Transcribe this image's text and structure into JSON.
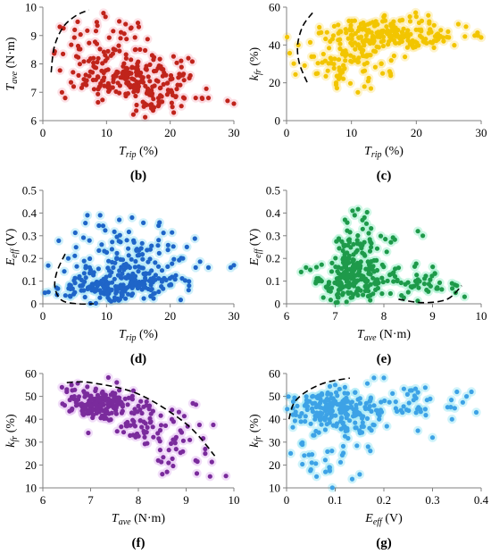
{
  "chart_data": [
    {
      "id": "b",
      "type": "scatter",
      "caption": "(b)",
      "color": "#c0241b",
      "halo": "#f9c8d2",
      "xlabel": {
        "base": "T",
        "sub": "rip",
        "unit": " (%)"
      },
      "ylabel": {
        "base": "T",
        "sub": "ave",
        "unit": " (N·m)"
      },
      "xlim": [
        0,
        30
      ],
      "ylim": [
        6,
        10
      ],
      "xticks": [
        0,
        10,
        20,
        30
      ],
      "yticks": [
        6,
        7,
        8,
        9,
        10
      ],
      "boundary": [
        [
          1.3,
          7.7
        ],
        [
          1.8,
          8.6
        ],
        [
          3.2,
          9.3
        ],
        [
          5.2,
          9.7
        ],
        [
          7.2,
          9.9
        ]
      ],
      "clusters": [
        {
          "cx": 14,
          "sx": 4.5,
          "cy": 7.5,
          "sy": 0.45,
          "n": 170
        },
        {
          "cx": 10,
          "sx": 4,
          "cy": 8.4,
          "sy": 0.6,
          "n": 75
        },
        {
          "cx": 18,
          "sx": 2,
          "cy": 7.0,
          "sy": 0.3,
          "n": 25
        },
        {
          "cx": 17.5,
          "sx": 1.5,
          "cy": 6.6,
          "sy": 0.15,
          "n": 12
        }
      ],
      "points": [
        [
          12,
          9.5
        ],
        [
          13,
          9.4
        ],
        [
          5,
          9.2
        ],
        [
          24,
          6.8
        ],
        [
          25,
          6.8
        ],
        [
          26,
          6.8
        ],
        [
          29,
          6.7
        ],
        [
          30,
          6.6
        ],
        [
          22,
          7.6
        ],
        [
          23,
          7.5
        ],
        [
          3,
          7.0
        ],
        [
          3.5,
          6.8
        ]
      ]
    },
    {
      "id": "c",
      "type": "scatter",
      "caption": "(c)",
      "color": "#f2c500",
      "halo": "#fdeaa0",
      "xlabel": {
        "base": "T",
        "sub": "rip",
        "unit": " (%)"
      },
      "ylabel": {
        "base": "k",
        "sub": "fr",
        "unit": " (%)"
      },
      "xlim": [
        0,
        30
      ],
      "ylim": [
        0,
        60
      ],
      "xticks": [
        0,
        10,
        20,
        30
      ],
      "yticks": [
        0,
        20,
        40,
        60
      ],
      "boundary": [
        [
          4,
          57
        ],
        [
          2.5,
          50
        ],
        [
          1.7,
          40
        ],
        [
          2,
          30
        ],
        [
          3.2,
          20
        ]
      ],
      "clusters": [
        {
          "cx": 15,
          "sx": 4.5,
          "cy": 46,
          "sy": 4.5,
          "n": 170
        },
        {
          "cx": 10,
          "sx": 4,
          "cy": 36,
          "sy": 7,
          "n": 80
        },
        {
          "cx": 8,
          "sx": 3,
          "cy": 25,
          "sy": 5,
          "n": 25
        },
        {
          "cx": 22,
          "sx": 3,
          "cy": 44,
          "sy": 2.5,
          "n": 25
        }
      ],
      "points": [
        [
          12,
          18
        ],
        [
          13,
          17
        ],
        [
          11,
          15
        ],
        [
          29,
          45
        ],
        [
          30,
          44
        ],
        [
          29.5,
          45
        ],
        [
          25,
          44
        ],
        [
          19,
          55
        ],
        [
          20,
          55
        ]
      ]
    },
    {
      "id": "d",
      "type": "scatter",
      "caption": "(d)",
      "color": "#1f65c8",
      "halo": "#a8e4f5",
      "xlabel": {
        "base": "T",
        "sub": "rip",
        "unit": " (%)"
      },
      "ylabel": {
        "base": "E",
        "sub": "eff",
        "unit": " (V)"
      },
      "xlim": [
        0,
        30
      ],
      "ylim": [
        0,
        0.5
      ],
      "xticks": [
        0,
        10,
        20,
        30
      ],
      "yticks": [
        0,
        0.1,
        0.2,
        0.3,
        0.4,
        0.5
      ],
      "boundary": [
        [
          3.5,
          0.22
        ],
        [
          2.2,
          0.14
        ],
        [
          1.9,
          0.07
        ],
        [
          3,
          0.015
        ],
        [
          5.5,
          0.0
        ],
        [
          8,
          0.0
        ]
      ],
      "clusters": [
        {
          "cx": 13,
          "sx": 4.5,
          "cy": 0.09,
          "sy": 0.04,
          "n": 180
        },
        {
          "cx": 14,
          "sx": 5,
          "cy": 0.22,
          "sy": 0.07,
          "n": 90
        },
        {
          "cx": 8,
          "sx": 3.5,
          "cy": 0.06,
          "sy": 0.03,
          "n": 50
        }
      ],
      "points": [
        [
          7,
          0.39
        ],
        [
          9,
          0.39
        ],
        [
          12,
          0.37
        ],
        [
          14,
          0.38
        ],
        [
          29.5,
          0.16
        ],
        [
          30,
          0.17
        ],
        [
          22,
          0.2
        ],
        [
          24,
          0.16
        ],
        [
          26,
          0.16
        ],
        [
          4,
          0.2
        ]
      ]
    },
    {
      "id": "e",
      "type": "scatter",
      "caption": "(e)",
      "color": "#1e9a4a",
      "halo": "#a8f0d0",
      "xlabel": {
        "base": "T",
        "sub": "ave",
        "unit": " (N·m)"
      },
      "ylabel": {
        "base": "E",
        "sub": "eff",
        "unit": " (V)"
      },
      "xlim": [
        6,
        10
      ],
      "ylim": [
        0,
        0.5
      ],
      "xticks": [
        6,
        7,
        8,
        9,
        10
      ],
      "yticks": [
        0,
        0.1,
        0.2,
        0.3,
        0.4,
        0.5
      ],
      "boundary": [
        [
          8.3,
          0.02
        ],
        [
          8.8,
          0.005
        ],
        [
          9.3,
          0.02
        ],
        [
          9.6,
          0.08
        ]
      ],
      "clusters": [
        {
          "cx": 7.3,
          "sx": 0.35,
          "cy": 0.1,
          "sy": 0.05,
          "n": 170
        },
        {
          "cx": 7.5,
          "sx": 0.3,
          "cy": 0.24,
          "sy": 0.07,
          "n": 80
        },
        {
          "cx": 8.4,
          "sx": 0.5,
          "cy": 0.1,
          "sy": 0.04,
          "n": 40
        },
        {
          "cx": 9.1,
          "sx": 0.3,
          "cy": 0.07,
          "sy": 0.02,
          "n": 15
        }
      ],
      "points": [
        [
          7.2,
          0.37
        ],
        [
          7.4,
          0.39
        ],
        [
          7.6,
          0.38
        ],
        [
          8.7,
          0.32
        ],
        [
          8.8,
          0.3
        ],
        [
          9.4,
          0.09
        ],
        [
          9.5,
          0.08
        ],
        [
          6.3,
          0.14
        ],
        [
          6.4,
          0.16
        ]
      ]
    },
    {
      "id": "f",
      "type": "scatter",
      "caption": "(f)",
      "color": "#7a2b9c",
      "halo": "#e6c2f2",
      "xlabel": {
        "base": "T",
        "sub": "ave",
        "unit": " (N·m)"
      },
      "ylabel": {
        "base": "k",
        "sub": "fr",
        "unit": " (%)"
      },
      "xlim": [
        6,
        10
      ],
      "ylim": [
        10,
        60
      ],
      "xticks": [
        6,
        7,
        8,
        9,
        10
      ],
      "yticks": [
        10,
        20,
        30,
        40,
        50,
        60
      ],
      "boundary": [
        [
          6.5,
          56
        ],
        [
          7,
          56
        ],
        [
          8,
          51
        ],
        [
          9,
          38
        ],
        [
          9.6,
          24
        ]
      ],
      "clusters": [
        {
          "cx": 7.2,
          "sx": 0.35,
          "cy": 47,
          "sy": 3.5,
          "n": 190
        },
        {
          "cx": 8.1,
          "sx": 0.4,
          "cy": 38,
          "sy": 4.5,
          "n": 60
        },
        {
          "cx": 8.8,
          "sx": 0.35,
          "cy": 28,
          "sy": 6,
          "n": 30
        }
      ],
      "points": [
        [
          6.4,
          54
        ],
        [
          6.5,
          53
        ],
        [
          6.6,
          55
        ],
        [
          6.5,
          52
        ],
        [
          9.5,
          15
        ],
        [
          8.5,
          16
        ],
        [
          8.6,
          17
        ],
        [
          9.2,
          22
        ],
        [
          9.4,
          25
        ],
        [
          6.6,
          44
        ],
        [
          6.7,
          46
        ]
      ]
    },
    {
      "id": "g",
      "type": "scatter",
      "caption": "(g)",
      "color": "#3da2e6",
      "halo": "#a8eaf5",
      "xlabel": {
        "base": "E",
        "sub": "eff",
        "unit": " (V)"
      },
      "ylabel": {
        "base": "k",
        "sub": "fr",
        "unit": " (%)"
      },
      "xlim": [
        0,
        0.4
      ],
      "ylim": [
        10,
        60
      ],
      "xticks": [
        0,
        0.1,
        0.2,
        0.3,
        0.4
      ],
      "yticks": [
        10,
        20,
        30,
        40,
        50,
        60
      ],
      "boundary": [
        [
          0.005,
          40
        ],
        [
          0.015,
          47
        ],
        [
          0.04,
          52
        ],
        [
          0.08,
          56
        ],
        [
          0.13,
          58
        ]
      ],
      "clusters": [
        {
          "cx": 0.08,
          "sx": 0.04,
          "cy": 45,
          "sy": 4,
          "n": 150
        },
        {
          "cx": 0.2,
          "sx": 0.07,
          "cy": 47,
          "sy": 4,
          "n": 80
        },
        {
          "cx": 0.1,
          "sx": 0.06,
          "cy": 35,
          "sy": 7,
          "n": 50
        },
        {
          "cx": 0.06,
          "sx": 0.02,
          "cy": 20,
          "sy": 3,
          "n": 12
        }
      ],
      "points": [
        [
          0.38,
          52
        ],
        [
          0.39,
          43
        ],
        [
          0.37,
          50
        ],
        [
          0.35,
          52
        ],
        [
          0.34,
          40
        ],
        [
          0.3,
          32
        ],
        [
          0.27,
          35
        ],
        [
          0.1,
          55
        ],
        [
          0.12,
          54
        ],
        [
          0.05,
          18
        ],
        [
          0.08,
          17
        ]
      ]
    }
  ]
}
